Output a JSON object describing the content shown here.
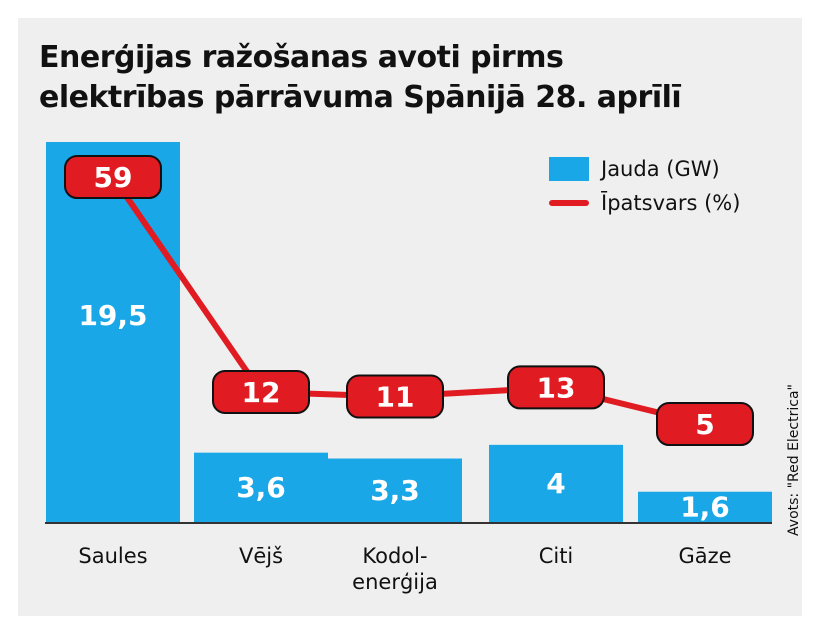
{
  "title_line1": "Enerģijas ražošanas avoti pirms",
  "title_line2": "elektrības pārrāvuma Spānijā 28. aprīlī",
  "source": "Avots: \"Red Electrica\"",
  "colors": {
    "bar": "#1aa7e8",
    "line": "#e01b22",
    "panel": "#efefef",
    "text": "#111111"
  },
  "chart_data": {
    "type": "bar",
    "categories": [
      [
        "Saules"
      ],
      [
        "Vējš"
      ],
      [
        "Kodol-",
        "enerģija"
      ],
      [
        "Citi"
      ],
      [
        "Gāze"
      ]
    ],
    "series": [
      {
        "name": "Jauda (GW)",
        "type": "bar",
        "values": [
          19.5,
          3.6,
          3.3,
          4,
          1.6
        ],
        "labels": [
          "19,5",
          "3,6",
          "3,3",
          "4",
          "1,6"
        ]
      },
      {
        "name": "Īpatsvars (%)",
        "type": "line",
        "values": [
          59,
          12,
          11,
          13,
          5
        ],
        "labels": [
          "59",
          "12",
          "11",
          "13",
          "5"
        ]
      }
    ],
    "legend_position": "top-right",
    "grid": false
  }
}
